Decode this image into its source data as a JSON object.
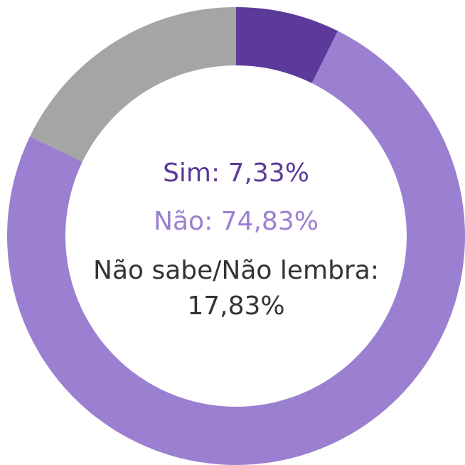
{
  "chart_data": {
    "type": "donut",
    "categories": [
      "Sim",
      "Não",
      "Não sabe/Não lembra"
    ],
    "values": [
      7.33,
      74.83,
      17.83
    ],
    "value_labels": [
      "7,33%",
      "74,83%",
      "17,83%"
    ],
    "colors": [
      "#5c3a99",
      "#9b7fd0",
      "#a5a5a5"
    ]
  }
}
